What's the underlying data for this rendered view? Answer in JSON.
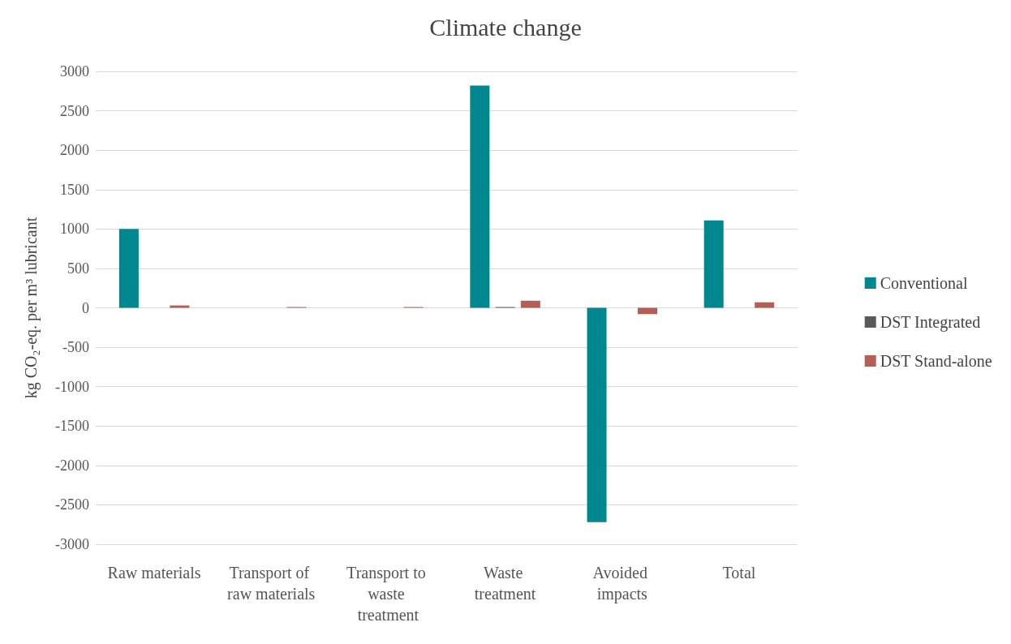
{
  "chart_data": {
    "type": "bar",
    "title": "Climate change",
    "ylabel": "kg CO₂-eq. per m³ lubricant",
    "categories": [
      "Raw materials",
      "Transport of raw materials",
      "Transport to waste treatment",
      "Waste treatment",
      "Avoided impacts",
      "Total"
    ],
    "series": [
      {
        "name": "Conventional",
        "color": "#00878f",
        "values": [
          1000,
          0,
          0,
          2820,
          -2720,
          1110
        ]
      },
      {
        "name": "DST Integrated",
        "color": "#595959",
        "values": [
          0,
          0,
          0,
          10,
          0,
          0
        ]
      },
      {
        "name": "DST Stand-alone",
        "color": "#b45f55",
        "values": [
          30,
          10,
          10,
          90,
          -80,
          70
        ]
      }
    ],
    "ylim": [
      -3000,
      3000
    ],
    "yticks": [
      -3000,
      -2500,
      -2000,
      -1500,
      -1000,
      -500,
      0,
      500,
      1000,
      1500,
      2000,
      2500,
      3000
    ],
    "grid": "y",
    "legend": "right"
  }
}
